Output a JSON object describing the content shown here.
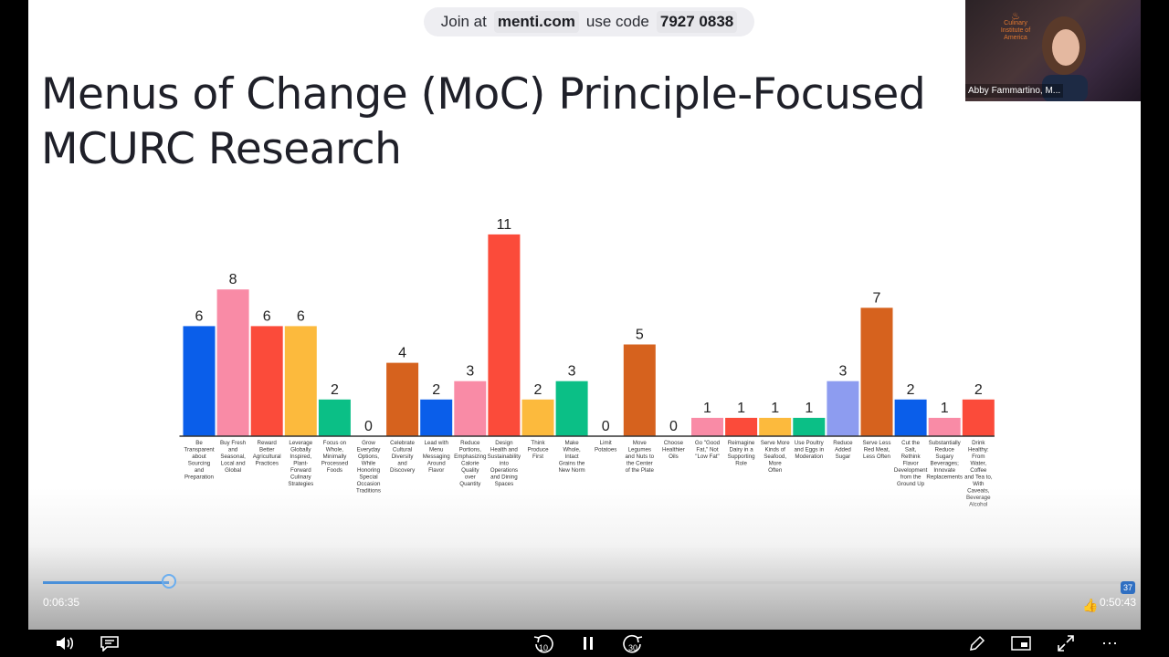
{
  "join": {
    "prefix": "Join at",
    "site": "menti.com",
    "middle": "use code",
    "code": "7927 0838"
  },
  "slide": {
    "title_line1": "Menus of Change (MoC) Principle-Focused",
    "title_line2": "MCURC Research"
  },
  "video": {
    "participant": "Abby Fammartino, M...",
    "logo_text": "Culinary Institute of America"
  },
  "player": {
    "elapsed": "0:06:35",
    "remaining": "0:50:43",
    "progress": 0.115,
    "rewind_label": "10",
    "forward_label": "30",
    "notification_count": "37"
  },
  "colors": {
    "blue": "#0a5eea",
    "pink": "#f98ba6",
    "red": "#fb4b3a",
    "yellow": "#fcba3d",
    "green": "#0bbf86",
    "orange": "#d6621e",
    "lavender": "#8d9cf0"
  },
  "chart_data": {
    "type": "bar",
    "ylim": [
      0,
      11
    ],
    "categories": [
      "Be Transparent about Sourcing and Preparation",
      "Buy Fresh and Seasonal, Local and Global",
      "Reward Better Agricultural Practices",
      "Leverage Globally Inspired, Plant-Forward Culinary Strategies",
      "Focus on Whole, Minimally Processed Foods",
      "Grow Everyday Options, While Honoring Special Occasion Traditions",
      "Celebrate Cultural Diversity and Discovery",
      "Lead with Menu Messaging Around Flavor",
      "Reduce Portions, Emphasizing Calorie Quality over Quantity",
      "Design Health and Sustainability into Operations and Dining Spaces",
      "Think Produce First",
      "Make Whole, Intact Grains the New Norm",
      "Limit Potatoes",
      "Move Legumes and Nuts to the Center of the Plate",
      "Choose Healthier Oils",
      "Go \"Good Fat,\" Not \"Low Fat\"",
      "Reimagine Dairy in a Supporting Role",
      "Serve More Kinds of Seafood, More Often",
      "Use Poultry and Eggs in Moderation",
      "Reduce Added Sugar",
      "Serve Less Red Meat, Less Often",
      "Cut the Salt, Rethink Flavor Development from the Ground Up",
      "Substantially Reduce Sugary Beverages; Innovate Replacements",
      "Drink Healthy: From Water, Coffee and Tea to, With Caveats, Beverage Alcohol"
    ],
    "values": [
      6,
      8,
      6,
      6,
      2,
      0,
      4,
      2,
      3,
      11,
      2,
      3,
      0,
      5,
      0,
      1,
      1,
      1,
      1,
      3,
      7,
      2,
      1,
      2
    ],
    "bar_colors": [
      "blue",
      "pink",
      "red",
      "yellow",
      "green",
      "blue",
      "orange",
      "blue",
      "pink",
      "red",
      "yellow",
      "green",
      "red",
      "orange",
      "orange",
      "pink",
      "red",
      "yellow",
      "green",
      "lavender",
      "orange",
      "blue",
      "pink",
      "red"
    ],
    "label_lines": [
      [
        "Be",
        "Transparent",
        "about",
        "Sourcing",
        "and",
        "Preparation"
      ],
      [
        "Buy Fresh",
        "and",
        "Seasonal,",
        "Local and",
        "Global"
      ],
      [
        "Reward",
        "Better",
        "Agricultural",
        "Practices"
      ],
      [
        "Leverage",
        "Globally",
        "Inspired,",
        "Plant-",
        "Forward",
        "Culinary",
        "Strategies"
      ],
      [
        "Focus on",
        "Whole,",
        "Minimally",
        "Processed",
        "Foods"
      ],
      [
        "Grow",
        "Everyday",
        "Options,",
        "While",
        "Honoring",
        "Special",
        "Occasion",
        "Traditions"
      ],
      [
        "Celebrate",
        "Cultural",
        "Diversity",
        "and",
        "Discovery"
      ],
      [
        "Lead with",
        "Menu",
        "Messaging",
        "Around",
        "Flavor"
      ],
      [
        "Reduce",
        "Portions,",
        "Emphasizing",
        "Calorie",
        "Quality",
        "over",
        "Quantity"
      ],
      [
        "Design",
        "Health and",
        "Sustainability",
        "into",
        "Operations",
        "and Dining",
        "Spaces"
      ],
      [
        "Think",
        "Produce",
        "First"
      ],
      [
        "Make",
        "Whole,",
        "Intact",
        "Grains the",
        "New Norm"
      ],
      [
        "Limit",
        "Potatoes"
      ],
      [
        "Move",
        "Legumes",
        "and Nuts to",
        "the Center",
        "of the Plate"
      ],
      [
        "Choose",
        "Healthier",
        "Oils"
      ],
      [
        "Go \"Good",
        "Fat,\" Not",
        "\"Low Fat\""
      ],
      [
        "Reimagine",
        "Dairy in a",
        "Supporting",
        "Role"
      ],
      [
        "Serve More",
        "Kinds of",
        "Seafood,",
        "More",
        "Often"
      ],
      [
        "Use Poultry",
        "and Eggs in",
        "Moderation"
      ],
      [
        "Reduce",
        "Added",
        "Sugar"
      ],
      [
        "Serve Less",
        "Red Meat,",
        "Less Often"
      ],
      [
        "Cut the",
        "Salt,",
        "Rethink",
        "Flavor",
        "Development",
        "from the",
        "Ground Up"
      ],
      [
        "Substantially",
        "Reduce",
        "Sugary",
        "Beverages;",
        "Innovate",
        "Replacements"
      ],
      [
        "Drink",
        "Healthy:",
        "From",
        "Water,",
        "Coffee",
        "and Tea to,",
        "With",
        "Caveats,",
        "Beverage",
        "Alcohol"
      ]
    ]
  }
}
